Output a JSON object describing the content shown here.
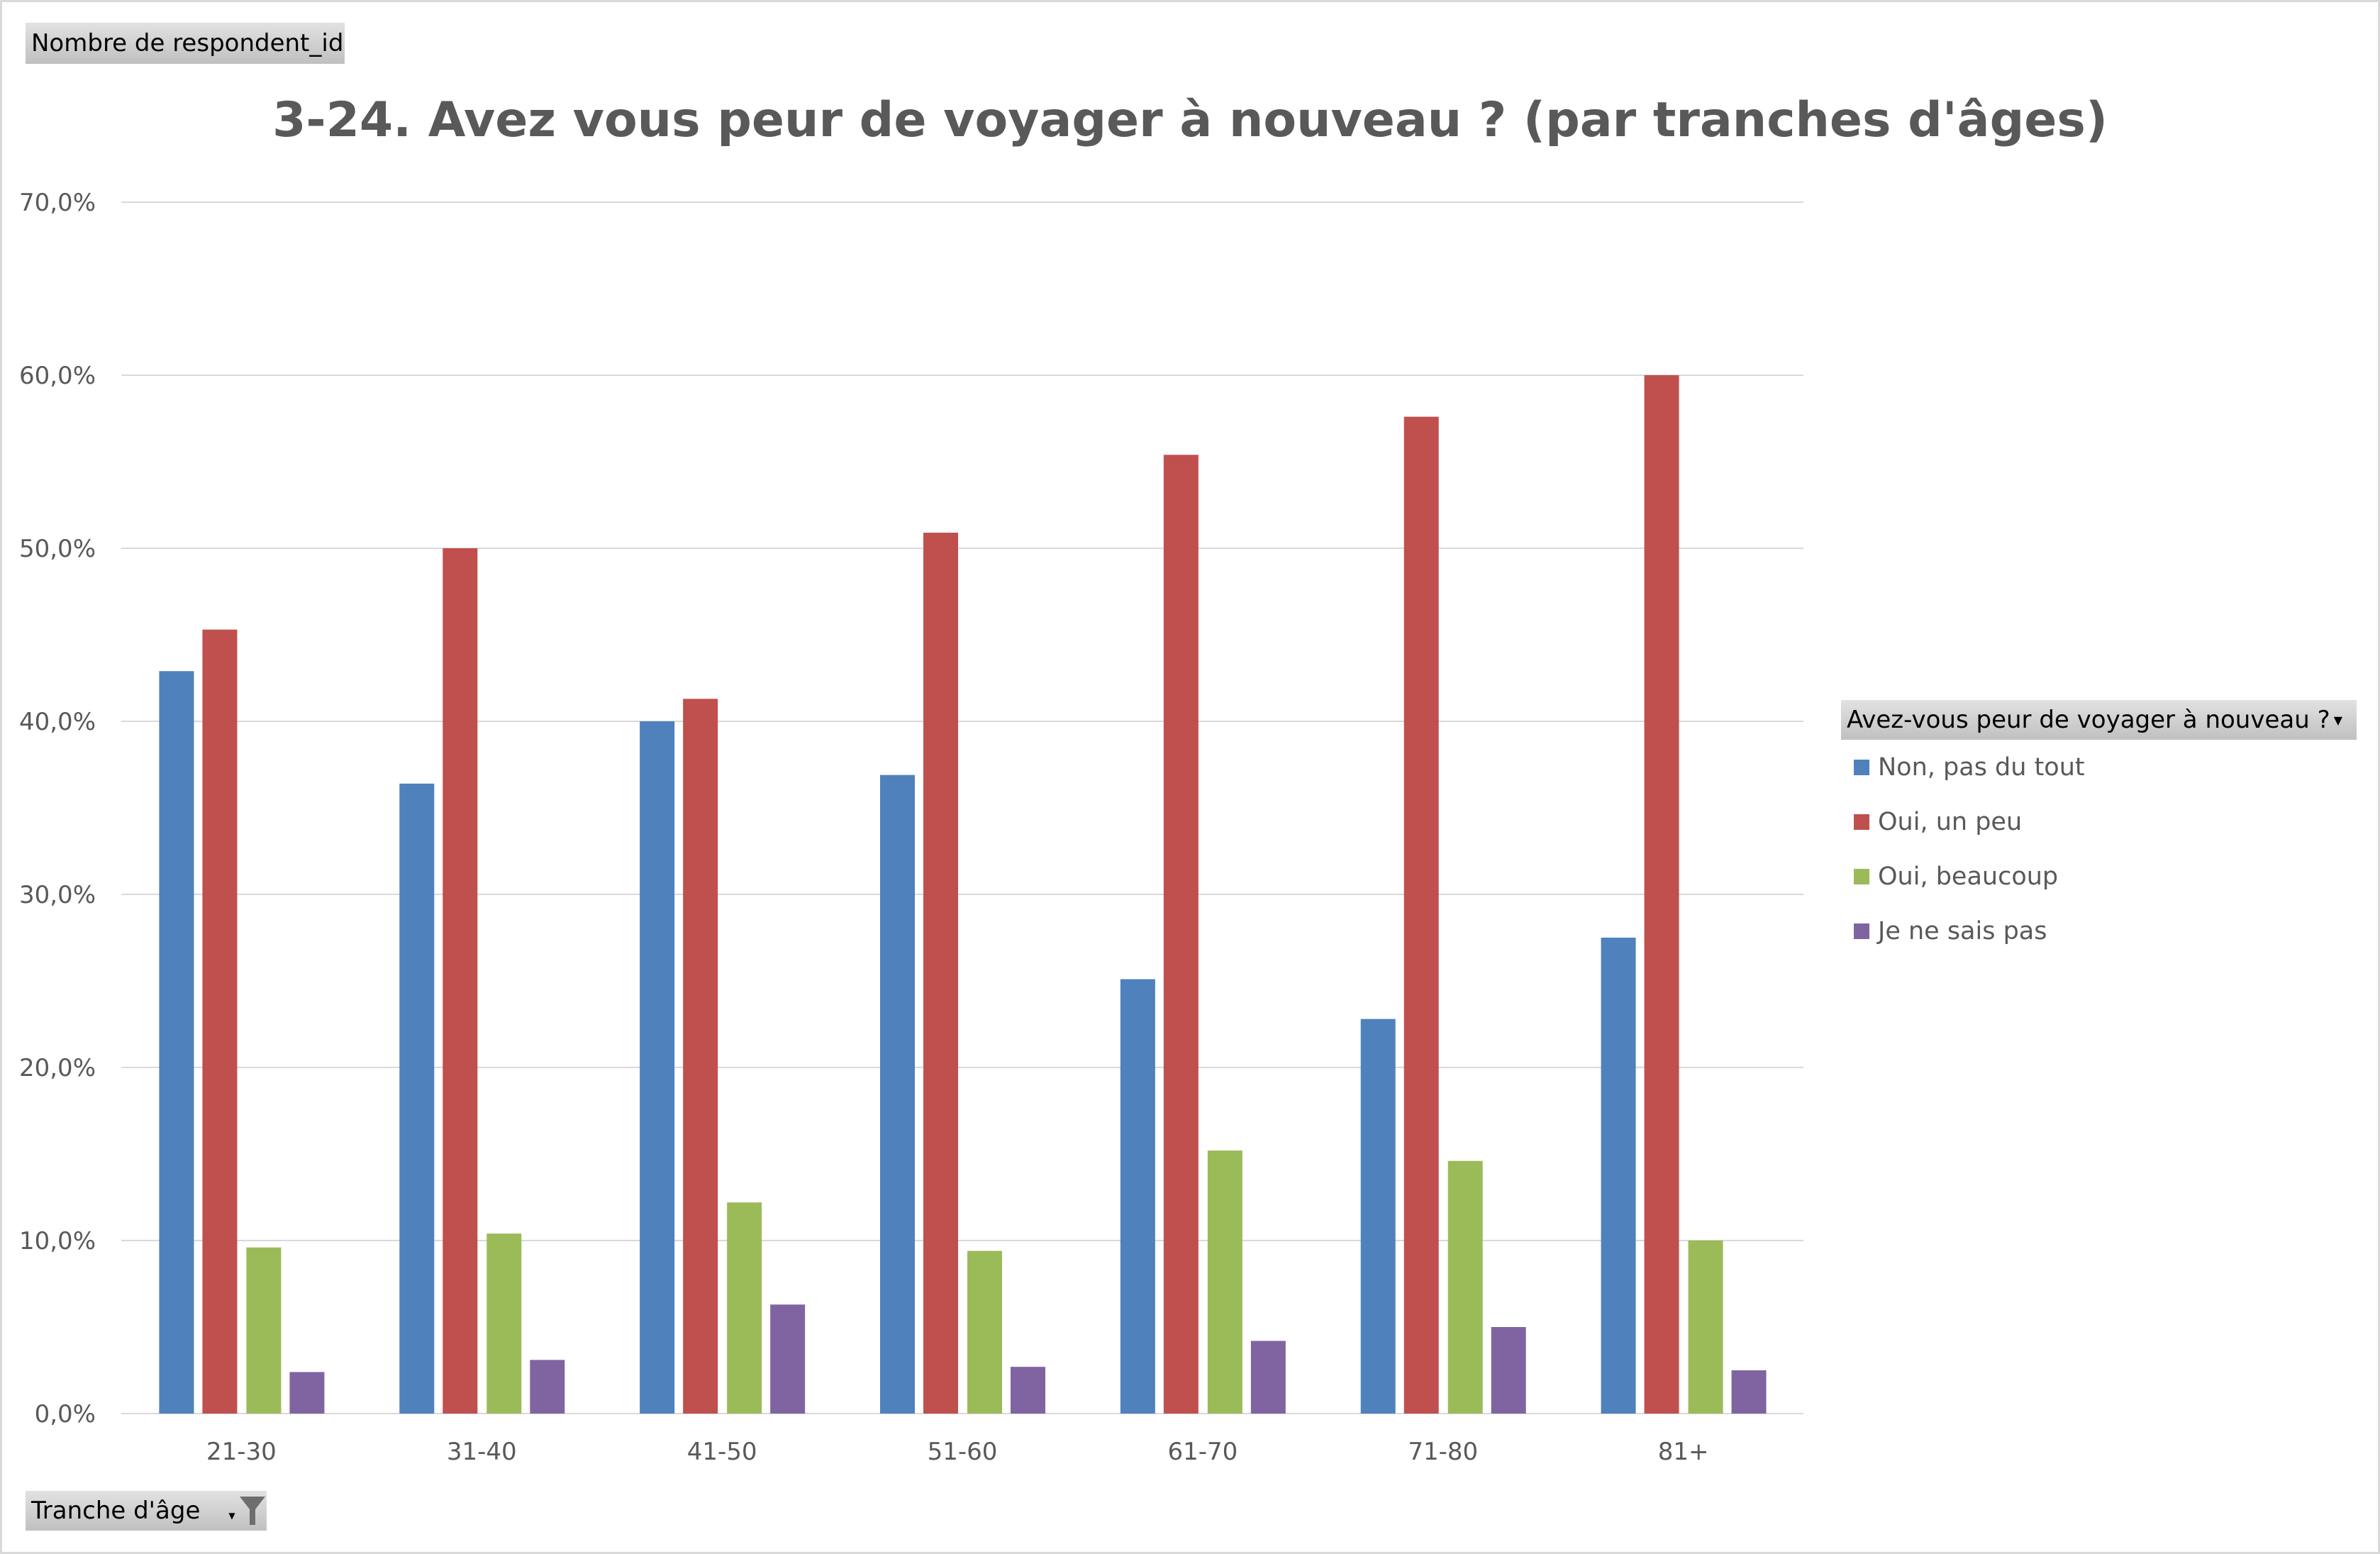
{
  "field_buttons": {
    "values_field": "Nombre de respondent_id",
    "axis_field": "Tranche d'âge",
    "legend_field": "Avez-vous peur de voyager à nouveau ?"
  },
  "chart_data": {
    "type": "bar",
    "title": "3-24. Avez vous peur de voyager à nouveau ? (par tranches d'âges)",
    "xlabel": "Tranche d'âge",
    "ylabel": "Nombre de respondent_id",
    "ylim": [
      0,
      70
    ],
    "yticks": [
      "0,0%",
      "10,0%",
      "20,0%",
      "30,0%",
      "40,0%",
      "50,0%",
      "60,0%",
      "70,0%"
    ],
    "grid": true,
    "legend_placement": "right",
    "legend_title": "Avez-vous peur de voyager à nouveau ?",
    "categories": [
      "21-30",
      "31-40",
      "41-50",
      "51-60",
      "61-70",
      "71-80",
      "81+"
    ],
    "series": [
      {
        "name": "Non, pas du tout",
        "color": "#4f81bd",
        "values": [
          42.9,
          36.4,
          40.0,
          36.9,
          25.1,
          22.8,
          27.5
        ]
      },
      {
        "name": "Oui, un peu",
        "color": "#c0504d",
        "values": [
          45.3,
          50.0,
          41.3,
          50.9,
          55.4,
          57.6,
          60.0
        ]
      },
      {
        "name": "Oui, beaucoup",
        "color": "#9bbb59",
        "values": [
          9.6,
          10.4,
          12.2,
          9.4,
          15.2,
          14.6,
          10.0
        ]
      },
      {
        "name": "Je ne sais pas",
        "color": "#8064a2",
        "values": [
          2.4,
          3.1,
          6.3,
          2.7,
          4.2,
          5.0,
          2.5
        ]
      }
    ]
  }
}
